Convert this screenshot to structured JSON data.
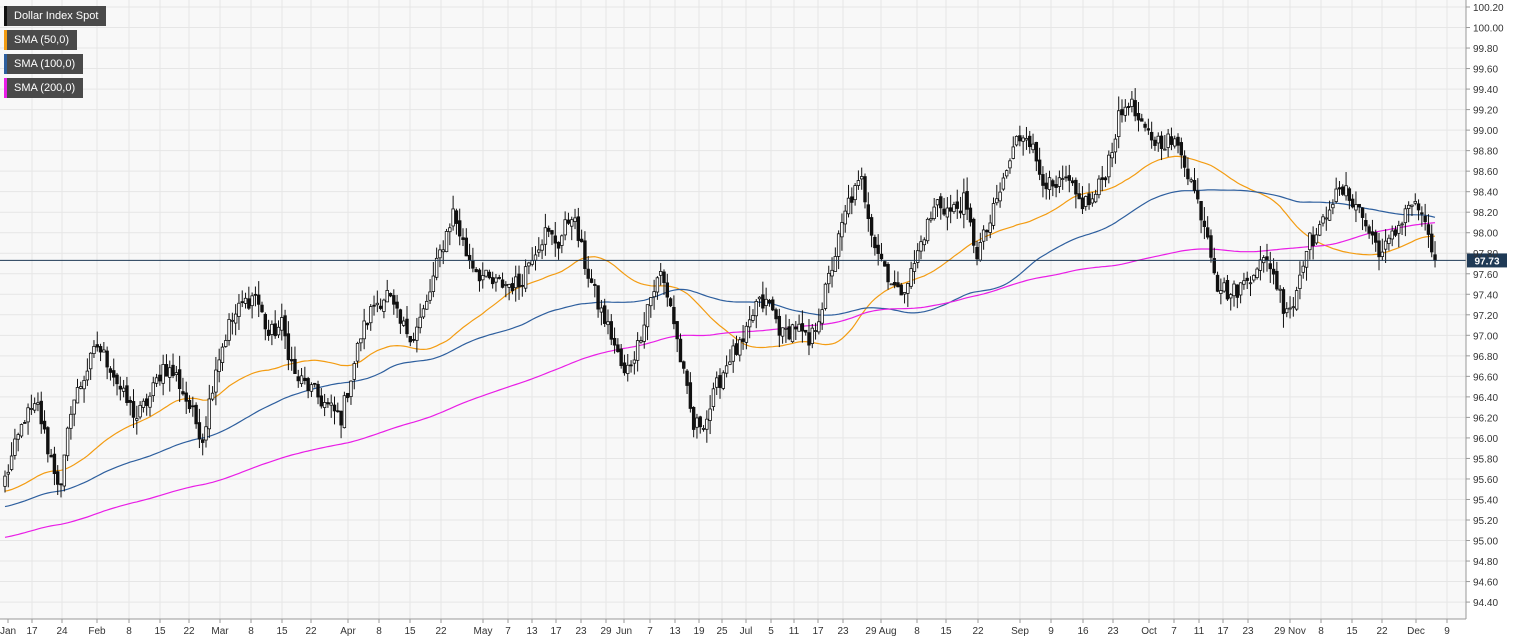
{
  "chart_data": {
    "type": "candlestick",
    "title": "",
    "instrument": "Dollar Index Spot",
    "last_price": "97.73",
    "ylim": [
      94.3,
      100.3
    ],
    "y_ticks": [
      "94.40",
      "94.60",
      "94.80",
      "95.00",
      "95.20",
      "95.40",
      "95.60",
      "95.80",
      "96.00",
      "96.20",
      "96.40",
      "96.60",
      "96.80",
      "97.00",
      "97.20",
      "97.40",
      "97.60",
      "97.80",
      "98.00",
      "98.20",
      "98.40",
      "98.60",
      "98.80",
      "99.00",
      "99.20",
      "99.40",
      "99.60",
      "99.80",
      "100.00",
      "100.20"
    ],
    "x_ticks": [
      "Jan",
      "17",
      "24",
      "Feb",
      "8",
      "15",
      "22",
      "Mar",
      "8",
      "15",
      "22",
      "Apr",
      "8",
      "15",
      "22",
      "May",
      "7",
      "13",
      "17",
      "23",
      "29",
      "Jun",
      "7",
      "13",
      "19",
      "25",
      "Jul",
      "5",
      "11",
      "17",
      "23",
      "29 Aug",
      "8",
      "15",
      "22",
      "Sep",
      "9",
      "16",
      "23",
      "Oct",
      "7",
      "11",
      "17",
      "23",
      "29 Nov",
      "8",
      "15",
      "22",
      "Dec",
      "9"
    ],
    "legend": [
      {
        "label": "Dollar Index Spot",
        "color": "#111111"
      },
      {
        "label": "SMA (50,0)",
        "color": "#f39c12"
      },
      {
        "label": "SMA (100,0)",
        "color": "#2e5f9e"
      },
      {
        "label": "SMA (200,0)",
        "color": "#e91ee6"
      }
    ],
    "colors": {
      "bull": "#ffffff",
      "bear": "#111111",
      "grid": "#e6e6e6",
      "bg": "#f8f8f8",
      "price_line": "#1f3a56",
      "price_badge": "#1f3a56"
    },
    "close_anchors": [
      [
        0,
        95.6
      ],
      [
        3,
        95.9
      ],
      [
        6,
        96.2
      ],
      [
        10,
        96.3
      ],
      [
        13,
        95.9
      ],
      [
        17,
        95.5
      ],
      [
        20,
        96.3
      ],
      [
        24,
        96.6
      ],
      [
        28,
        96.9
      ],
      [
        32,
        96.7
      ],
      [
        36,
        96.4
      ],
      [
        40,
        96.2
      ],
      [
        44,
        96.4
      ],
      [
        48,
        96.7
      ],
      [
        52,
        96.6
      ],
      [
        56,
        96.3
      ],
      [
        60,
        96.0
      ],
      [
        64,
        96.7
      ],
      [
        68,
        97.1
      ],
      [
        72,
        97.3
      ],
      [
        76,
        97.4
      ],
      [
        80,
        97.0
      ],
      [
        84,
        97.1
      ],
      [
        88,
        96.6
      ],
      [
        92,
        96.5
      ],
      [
        95,
        96.4
      ],
      [
        98,
        96.3
      ],
      [
        102,
        96.2
      ],
      [
        108,
        97.0
      ],
      [
        112,
        97.3
      ],
      [
        116,
        97.4
      ],
      [
        120,
        97.1
      ],
      [
        124,
        97.0
      ],
      [
        128,
        97.3
      ],
      [
        132,
        97.8
      ],
      [
        136,
        98.2
      ],
      [
        140,
        97.8
      ],
      [
        144,
        97.6
      ],
      [
        148,
        97.5
      ],
      [
        152,
        97.5
      ],
      [
        156,
        97.5
      ],
      [
        160,
        97.8
      ],
      [
        164,
        98.0
      ],
      [
        168,
        97.9
      ],
      [
        172,
        98.2
      ],
      [
        176,
        97.7
      ],
      [
        180,
        97.3
      ],
      [
        184,
        97.0
      ],
      [
        188,
        96.6
      ],
      [
        192,
        96.9
      ],
      [
        195,
        97.3
      ],
      [
        199,
        97.6
      ],
      [
        202,
        97.3
      ],
      [
        206,
        96.6
      ],
      [
        209,
        96.1
      ],
      [
        213,
        96.2
      ],
      [
        216,
        96.5
      ],
      [
        220,
        96.8
      ],
      [
        224,
        96.9
      ],
      [
        228,
        97.3
      ],
      [
        232,
        97.3
      ],
      [
        236,
        97.0
      ],
      [
        240,
        97.1
      ],
      [
        244,
        96.9
      ],
      [
        248,
        97.3
      ],
      [
        252,
        97.8
      ],
      [
        256,
        98.3
      ],
      [
        260,
        98.5
      ],
      [
        264,
        97.9
      ],
      [
        268,
        97.6
      ],
      [
        271,
        97.4
      ],
      [
        275,
        97.6
      ],
      [
        279,
        98.0
      ],
      [
        283,
        98.3
      ],
      [
        287,
        98.2
      ],
      [
        291,
        98.3
      ],
      [
        295,
        97.8
      ],
      [
        299,
        98.1
      ],
      [
        303,
        98.5
      ],
      [
        307,
        98.9
      ],
      [
        310,
        99.0
      ],
      [
        314,
        98.6
      ],
      [
        318,
        98.4
      ],
      [
        322,
        98.5
      ],
      [
        326,
        98.3
      ],
      [
        330,
        98.3
      ],
      [
        334,
        98.6
      ],
      [
        338,
        99.1
      ],
      [
        341,
        99.3
      ],
      [
        345,
        99.0
      ],
      [
        349,
        98.9
      ],
      [
        353,
        98.9
      ],
      [
        357,
        98.8
      ],
      [
        361,
        98.4
      ],
      [
        365,
        98.0
      ],
      [
        368,
        97.5
      ],
      [
        372,
        97.4
      ],
      [
        376,
        97.5
      ],
      [
        380,
        97.7
      ],
      [
        384,
        97.7
      ],
      [
        388,
        97.3
      ],
      [
        391,
        97.3
      ],
      [
        395,
        97.9
      ],
      [
        399,
        98.0
      ],
      [
        402,
        98.3
      ],
      [
        406,
        98.4
      ],
      [
        410,
        98.3
      ],
      [
        414,
        98.0
      ],
      [
        418,
        97.8
      ],
      [
        422,
        98.0
      ],
      [
        426,
        98.3
      ],
      [
        430,
        98.2
      ],
      [
        432,
        97.9
      ],
      [
        434,
        97.73
      ]
    ]
  }
}
